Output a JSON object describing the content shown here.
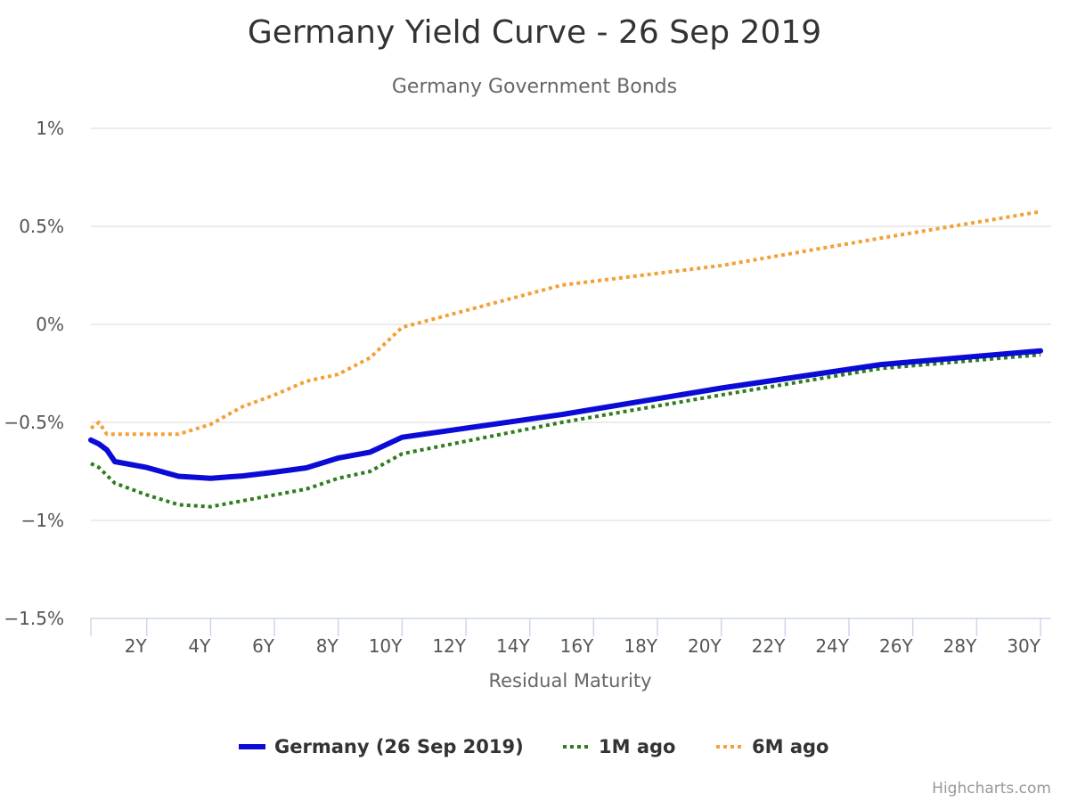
{
  "chart_data": {
    "type": "line",
    "title": "Germany Yield Curve - 26 Sep 2019",
    "subtitle": "Germany Government Bonds",
    "xlabel": "Residual Maturity",
    "ylabel": "",
    "xlim": [
      0.25,
      30
    ],
    "ylim": [
      -1.5,
      1
    ],
    "x_ticks": [
      {
        "value": 2,
        "label": "2Y"
      },
      {
        "value": 4,
        "label": "4Y"
      },
      {
        "value": 6,
        "label": "6Y"
      },
      {
        "value": 8,
        "label": "8Y"
      },
      {
        "value": 10,
        "label": "10Y"
      },
      {
        "value": 12,
        "label": "12Y"
      },
      {
        "value": 14,
        "label": "14Y"
      },
      {
        "value": 16,
        "label": "16Y"
      },
      {
        "value": 18,
        "label": "18Y"
      },
      {
        "value": 20,
        "label": "20Y"
      },
      {
        "value": 22,
        "label": "22Y"
      },
      {
        "value": 24,
        "label": "24Y"
      },
      {
        "value": 26,
        "label": "26Y"
      },
      {
        "value": 28,
        "label": "28Y"
      },
      {
        "value": 30,
        "label": "30Y"
      }
    ],
    "y_ticks": [
      {
        "value": 1,
        "label": "1%"
      },
      {
        "value": 0.5,
        "label": "0.5%"
      },
      {
        "value": 0,
        "label": "0%"
      },
      {
        "value": -0.5,
        "label": "-0.5%"
      },
      {
        "value": -1,
        "label": "-1%"
      },
      {
        "value": -1.5,
        "label": "-1.5%"
      }
    ],
    "grid": true,
    "legend_position": "bottom-center",
    "series": [
      {
        "name": "Germany (26 Sep 2019)",
        "color": "#0b0bd6",
        "style": "solid",
        "points": [
          [
            0.25,
            -0.59
          ],
          [
            0.5,
            -0.61
          ],
          [
            0.75,
            -0.64
          ],
          [
            1,
            -0.7
          ],
          [
            2,
            -0.73
          ],
          [
            3,
            -0.775
          ],
          [
            4,
            -0.785
          ],
          [
            5,
            -0.773
          ],
          [
            6,
            -0.754
          ],
          [
            7,
            -0.732
          ],
          [
            8,
            -0.682
          ],
          [
            9,
            -0.652
          ],
          [
            10,
            -0.576
          ],
          [
            15,
            -0.46
          ],
          [
            20,
            -0.325
          ],
          [
            25,
            -0.205
          ],
          [
            30,
            -0.135
          ]
        ]
      },
      {
        "name": "1M ago",
        "color": "#2e7d1e",
        "style": "dotted",
        "points": [
          [
            0.25,
            -0.71
          ],
          [
            0.5,
            -0.73
          ],
          [
            0.75,
            -0.77
          ],
          [
            1,
            -0.81
          ],
          [
            2,
            -0.87
          ],
          [
            3,
            -0.92
          ],
          [
            4,
            -0.93
          ],
          [
            5,
            -0.9
          ],
          [
            6,
            -0.87
          ],
          [
            7,
            -0.84
          ],
          [
            8,
            -0.785
          ],
          [
            9,
            -0.75
          ],
          [
            10,
            -0.66
          ],
          [
            15,
            -0.5
          ],
          [
            20,
            -0.36
          ],
          [
            25,
            -0.225
          ],
          [
            30,
            -0.155
          ]
        ]
      },
      {
        "name": "6M ago",
        "color": "#f4a038",
        "style": "dotted",
        "points": [
          [
            0.25,
            -0.53
          ],
          [
            0.5,
            -0.5
          ],
          [
            0.75,
            -0.56
          ],
          [
            1,
            -0.56
          ],
          [
            2,
            -0.56
          ],
          [
            3,
            -0.56
          ],
          [
            4,
            -0.51
          ],
          [
            5,
            -0.42
          ],
          [
            6,
            -0.36
          ],
          [
            7,
            -0.29
          ],
          [
            8,
            -0.255
          ],
          [
            9,
            -0.17
          ],
          [
            10,
            -0.015
          ],
          [
            15,
            0.2
          ],
          [
            20,
            0.3
          ],
          [
            25,
            0.44
          ],
          [
            30,
            0.575
          ]
        ]
      }
    ]
  },
  "credits": "Highcharts.com"
}
